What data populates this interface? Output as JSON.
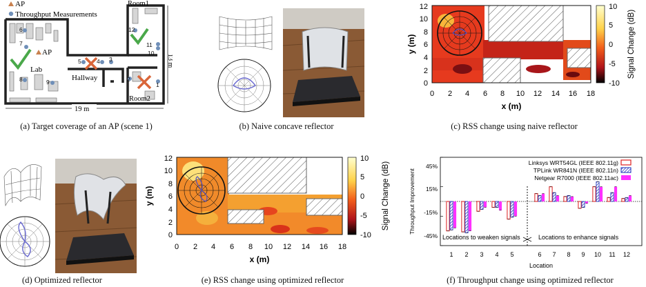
{
  "captions": {
    "a": "(a)  Target coverage of an AP (scene 1)",
    "b": "(b)  Naive concave reflector",
    "c": "(c)  RSS change using naive reflector",
    "d": "(d)  Optimized reflector",
    "e": "(e)  RSS change using optimized reflector",
    "f": "(f)  Throughput change using optimized reflector"
  },
  "floorplan": {
    "legend_ap": "AP",
    "legend_meas": "Throughput Measurements",
    "room1": "Room1",
    "room2": "Room2",
    "lab": "Lab",
    "hallway": "Hallway",
    "ap_label": "AP",
    "dim_h": "13 m",
    "dim_w": "19 m",
    "points": [
      "1",
      "2",
      "3",
      "4",
      "5",
      "6",
      "7",
      "8",
      "9",
      "10",
      "11",
      "12"
    ],
    "colors": {
      "wall": "#222222",
      "check": "#4aa84a",
      "cross": "#d9663a",
      "ap": "#c9814f",
      "meas": "#6f8fb8"
    }
  },
  "heatmap_c": {
    "xticks": [
      "0",
      "2",
      "4",
      "6",
      "8",
      "10",
      "12",
      "14",
      "16",
      "18"
    ],
    "yticks": [
      "0",
      "2",
      "4",
      "6",
      "8",
      "10",
      "12"
    ],
    "xlabel": "x (m)",
    "ylabel": "y (m)",
    "cbar_ticks": [
      "10",
      "5",
      "0",
      "-5",
      "-10"
    ],
    "cbar_label": "Signal Change (dB)"
  },
  "heatmap_e": {
    "xticks": [
      "0",
      "2",
      "4",
      "6",
      "8",
      "10",
      "12",
      "14",
      "16",
      "18"
    ],
    "yticks": [
      "0",
      "2",
      "4",
      "6",
      "8",
      "10",
      "12"
    ],
    "xlabel": "x (m)",
    "ylabel": "y (m)",
    "cbar_ticks": [
      "10",
      "5",
      "0",
      "-5",
      "-10"
    ],
    "cbar_label": "Signal Change (dB)"
  },
  "chart_data": [
    {
      "type": "bar",
      "ylabel": "Throughput Improvement",
      "xlabel": "Location",
      "categories": [
        "1",
        "2",
        "3",
        "4",
        "5",
        "6",
        "7",
        "8",
        "9",
        "10",
        "11",
        "12"
      ],
      "yticks": [
        "45%",
        "15%",
        "-15%",
        "-45%"
      ],
      "ylim": [
        -45,
        45
      ],
      "annotations": [
        "Locations to weaken signals",
        "Locations to enhance signals"
      ],
      "legend_position": "top-right",
      "series": [
        {
          "name": "Linksys WRT54GL (IEEE 802.11g)",
          "color": "#e03030",
          "style": "outline",
          "values": [
            -30,
            -31,
            -10,
            -6,
            -18,
            8,
            15,
            5,
            -7,
            15,
            4,
            3
          ]
        },
        {
          "name": "TPLink WR841N (IEEE 802.11n)",
          "color": "#2a3fc0",
          "style": "hatched",
          "values": [
            -29,
            -32,
            -8,
            -6,
            -16,
            6,
            9,
            6,
            -6,
            20,
            9,
            4
          ]
        },
        {
          "name": "Netgear R7000 (IEEE 802.11ac)",
          "color": "#ff30ff",
          "style": "solid",
          "values": [
            -27,
            -30,
            -6,
            -9,
            -15,
            8,
            6,
            5,
            -2,
            15,
            15,
            6
          ]
        }
      ]
    }
  ]
}
